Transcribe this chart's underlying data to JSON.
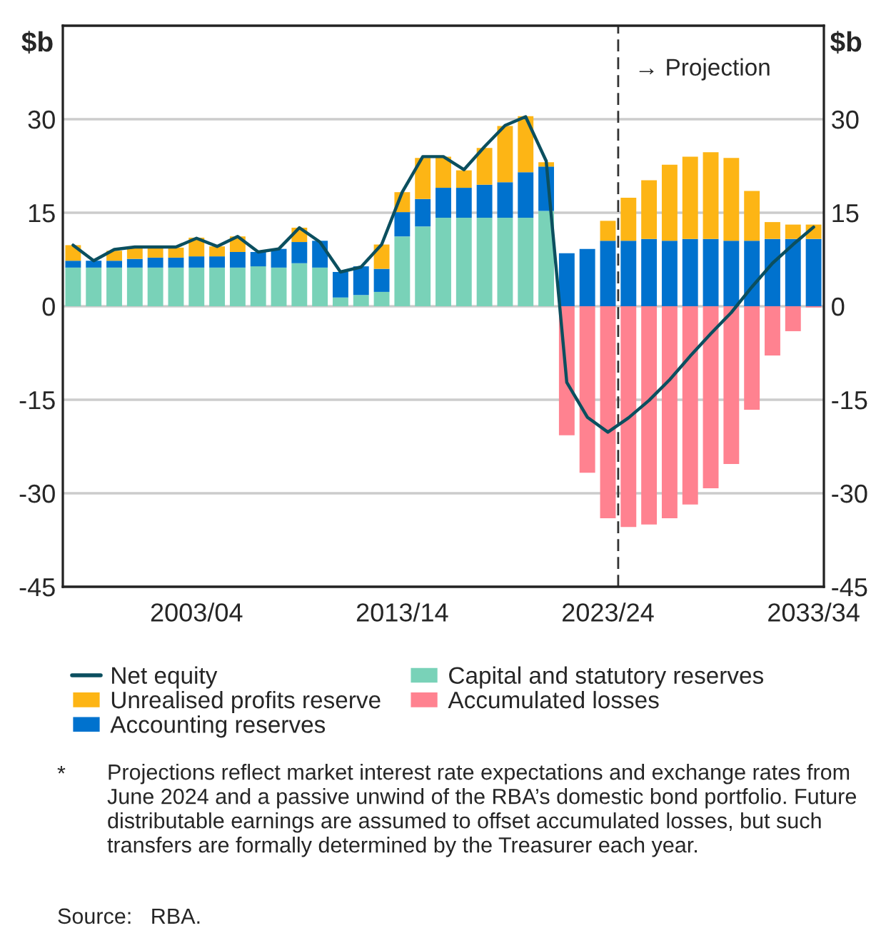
{
  "chart_data": {
    "type": "bar",
    "stacked": true,
    "ylabel": "$b",
    "y2label": "$b",
    "categories": [
      null,
      null,
      null,
      null,
      null,
      null,
      "2003/04",
      null,
      null,
      null,
      null,
      null,
      null,
      null,
      null,
      null,
      "2013/14",
      null,
      null,
      null,
      null,
      null,
      null,
      null,
      null,
      null,
      "2023/24",
      null,
      null,
      null,
      null,
      null,
      null,
      null,
      null,
      null,
      "2033/34"
    ],
    "series": [
      {
        "name": "Capital and statutory reserves",
        "color": "#79d2b8",
        "values": [
          6.2,
          6.2,
          6.2,
          6.2,
          6.2,
          6.2,
          6.2,
          6.2,
          6.2,
          6.4,
          6.2,
          6.9,
          6.2,
          1.4,
          1.8,
          2.3,
          11.2,
          12.8,
          14.2,
          14.2,
          14.2,
          14.2,
          14.2,
          15.3,
          null,
          null,
          null,
          null,
          null,
          null,
          null,
          null,
          null,
          null,
          null,
          null,
          null
        ]
      },
      {
        "name": "Accounting reserves",
        "color": "#0072ce",
        "values": [
          1.1,
          1.1,
          1.1,
          1.4,
          1.6,
          1.6,
          1.8,
          1.8,
          2.5,
          2.3,
          3.0,
          3.4,
          4.3,
          4.1,
          4.6,
          3.7,
          3.9,
          4.4,
          4.8,
          4.8,
          5.3,
          5.7,
          7.3,
          7.1,
          8.5,
          9.2,
          10.5,
          10.5,
          10.8,
          10.5,
          10.8,
          10.8,
          10.5,
          10.5,
          10.8,
          10.8,
          10.8
        ]
      },
      {
        "name": "Unrealised profits reserve",
        "color": "#fdb515",
        "values": [
          2.5,
          null,
          1.6,
          2.0,
          1.7,
          1.6,
          3.0,
          1.6,
          2.5,
          null,
          null,
          2.3,
          null,
          null,
          null,
          3.9,
          3.2,
          6.6,
          5.0,
          2.8,
          5.9,
          9.0,
          9.0,
          0.7,
          null,
          null,
          3.2,
          6.9,
          9.4,
          12.2,
          13.2,
          13.9,
          13.3,
          8.0,
          2.7,
          2.3,
          2.3
        ]
      },
      {
        "name": "Accumulated losses",
        "color": "#ff8290",
        "values": [
          null,
          null,
          null,
          null,
          null,
          null,
          null,
          null,
          null,
          null,
          null,
          null,
          null,
          null,
          null,
          null,
          null,
          null,
          null,
          null,
          null,
          null,
          null,
          null,
          -20.7,
          -26.7,
          -34.0,
          -35.4,
          -35.0,
          -34.0,
          -31.8,
          -29.2,
          -25.3,
          -16.6,
          -7.9,
          -4.0,
          -0.2
        ]
      },
      {
        "name": "Net equity",
        "type": "line",
        "color": "#0b4f5f",
        "values": [
          9.8,
          7.3,
          9.1,
          9.5,
          9.5,
          9.5,
          10.9,
          9.6,
          11.2,
          8.7,
          9.2,
          12.6,
          10.3,
          5.5,
          6.3,
          9.9,
          18.3,
          24.0,
          24.0,
          21.9,
          25.6,
          29.0,
          30.4,
          23.3,
          -12.2,
          -17.8,
          -20.2,
          -17.9,
          -15.1,
          -11.8,
          -8.0,
          -4.4,
          -1.0,
          3.1,
          6.9,
          9.9,
          12.7
        ]
      }
    ],
    "ylim": [
      -45,
      45
    ],
    "yticks": [
      -45,
      -30,
      -15,
      0,
      15,
      30
    ],
    "y2lim": [
      -45,
      45
    ],
    "y2ticks": [
      -45,
      -30,
      -15,
      0,
      15,
      30
    ],
    "ref_lines": [
      {
        "axis": "x",
        "value": "2023/24",
        "label": "→ Projection",
        "color": "#333333",
        "line_style": "dashed"
      }
    ],
    "grid": "y",
    "legend": "bottom",
    "annotations": [
      "*",
      "Projections reflect market interest rate expectations and exchange rates from June 2024 and a passive unwind of the RBA’s domestic bond portfolio. Future distributable earnings are assumed to offset accumulated losses, but such transfers are formally determined by the Treasurer each year.",
      "Source:   RBA."
    ]
  }
}
